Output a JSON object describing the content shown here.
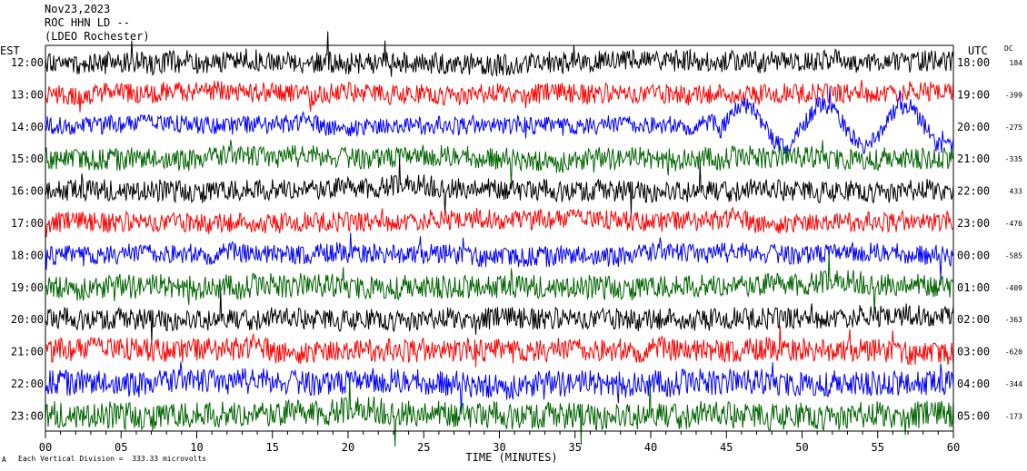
{
  "header": {
    "date": "Nov23,2023",
    "station": "ROC HHN LD --",
    "network": "(LDEO Rochester)"
  },
  "footer": {
    "scale_note": "Each Vertical Division =  333.33 microvolts",
    "mark": "A"
  },
  "chart_data": {
    "type": "line",
    "title": "",
    "xlabel": "TIME (MINUTES)",
    "left_axis_label": "EST",
    "right_axis_label": "UTC",
    "dc_label": "DC",
    "xlim": [
      0,
      60
    ],
    "x_ticks": [
      "00",
      "05",
      "10",
      "15",
      "20",
      "25",
      "30",
      "35",
      "40",
      "45",
      "50",
      "55",
      "60"
    ],
    "grid": false,
    "series_colors": [
      "#000000",
      "#ff0000",
      "#0000ff",
      "#006400"
    ],
    "rows": [
      {
        "est": "12:00",
        "utc": "18:00",
        "dc": "184",
        "color": "#000000",
        "amp": 12
      },
      {
        "est": "13:00",
        "utc": "19:00",
        "dc": "-399",
        "color": "#ff0000",
        "amp": 11
      },
      {
        "est": "14:00",
        "utc": "20:00",
        "dc": "-275",
        "color": "#0000ff",
        "amp": 10
      },
      {
        "est": "15:00",
        "utc": "21:00",
        "dc": "-335",
        "color": "#006400",
        "amp": 12
      },
      {
        "est": "16:00",
        "utc": "22:00",
        "dc": "433",
        "color": "#000000",
        "amp": 12
      },
      {
        "est": "17:00",
        "utc": "23:00",
        "dc": "-476",
        "color": "#ff0000",
        "amp": 11
      },
      {
        "est": "18:00",
        "utc": "00:00",
        "dc": "-585",
        "color": "#0000ff",
        "amp": 11
      },
      {
        "est": "19:00",
        "utc": "01:00",
        "dc": "-409",
        "color": "#006400",
        "amp": 13
      },
      {
        "est": "20:00",
        "utc": "02:00",
        "dc": "-363",
        "color": "#000000",
        "amp": 12
      },
      {
        "est": "21:00",
        "utc": "03:00",
        "dc": "-620",
        "color": "#ff0000",
        "amp": 13
      },
      {
        "est": "22:00",
        "utc": "04:00",
        "dc": "-344",
        "color": "#0000ff",
        "amp": 14
      },
      {
        "est": "23:00",
        "utc": "05:00",
        "dc": "-173",
        "color": "#006400",
        "amp": 15
      }
    ]
  }
}
